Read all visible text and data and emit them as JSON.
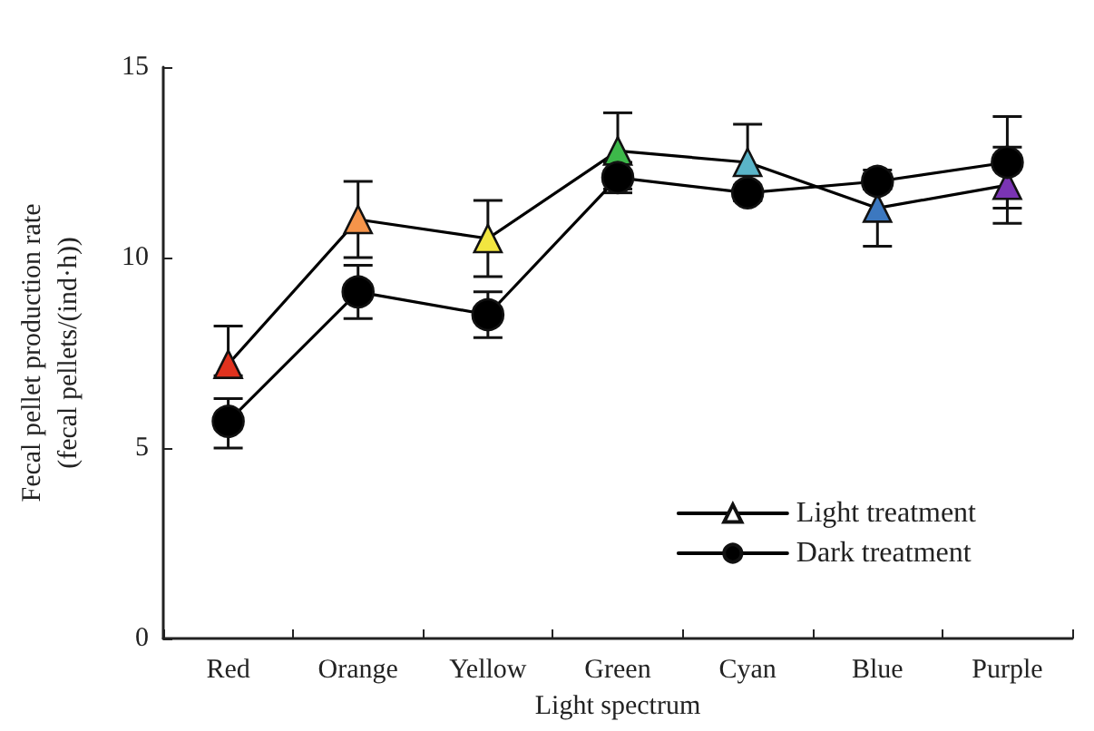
{
  "chart_data": {
    "type": "line",
    "xlabel": "Light spectrum",
    "ylabel": "Fecal pellet production rate\n(fecal pellets/(ind·h))",
    "categories": [
      "Red",
      "Orange",
      "Yellow",
      "Green",
      "Cyan",
      "Blue",
      "Purple"
    ],
    "series": [
      {
        "name": "Light treatment",
        "color": "#000000",
        "marker": "triangle",
        "colors": [
          "#e0321e",
          "#f5944a",
          "#f2e640",
          "#3db84a",
          "#5ab4c8",
          "#3c78c0",
          "#7a34b4"
        ],
        "values": [
          7.2,
          11.0,
          10.5,
          12.8,
          12.5,
          11.3,
          11.9
        ],
        "errors": [
          [
            6.9,
            8.2
          ],
          1.0,
          1.0,
          1.0,
          1.0,
          1.0,
          1.0
        ]
      },
      {
        "name": "Dark treatment",
        "color": "#000000",
        "marker": "circle",
        "values": [
          5.7,
          9.1,
          8.5,
          12.1,
          11.7,
          12.0,
          12.5
        ],
        "errors": [
          [
            5.0,
            6.3
          ],
          [
            8.4,
            9.8
          ],
          0.6,
          0.4,
          0.2,
          0.2,
          [
            11.3,
            13.7
          ]
        ]
      }
    ],
    "ylim": [
      0,
      15
    ],
    "yticks": [
      0,
      5,
      10,
      15
    ],
    "grid": false,
    "legend": "bottom right",
    "line_style": "solid"
  }
}
